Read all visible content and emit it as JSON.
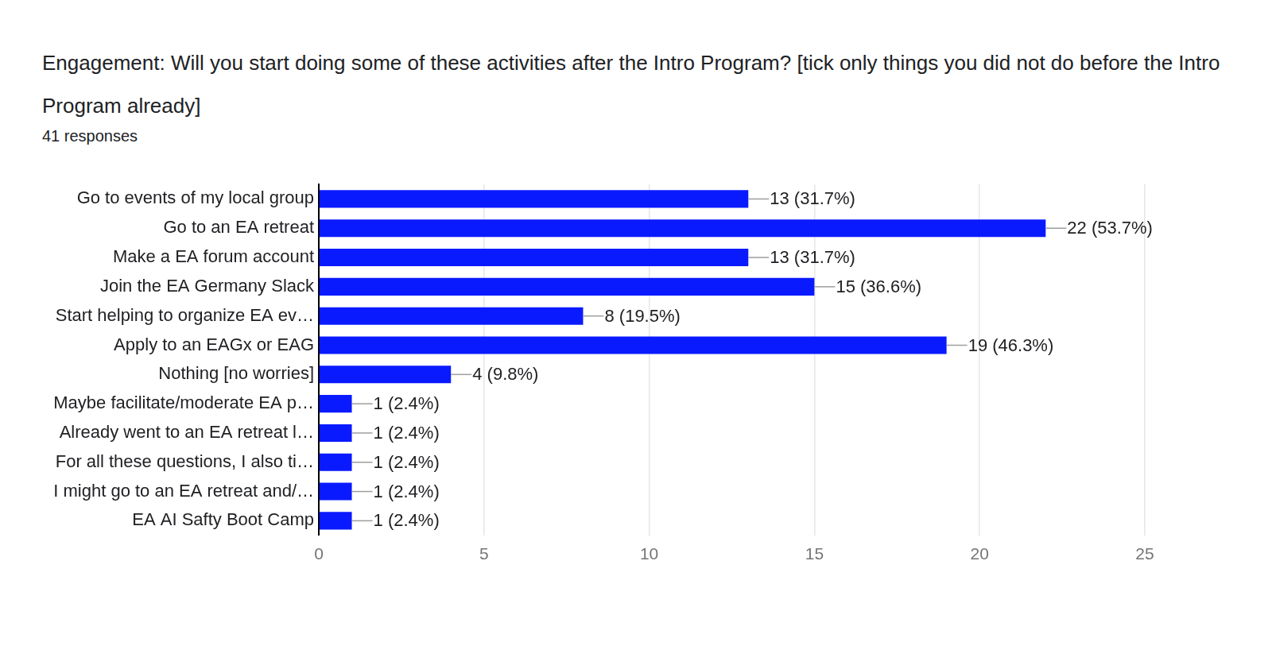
{
  "chart_data": {
    "type": "bar",
    "title": "Engagement: Will you start doing some of these activities after the Intro Program? [tick only things you did not do before the Intro Program already]",
    "subtitle": "41 responses",
    "orientation": "horizontal",
    "categories": [
      "Go to events of my local group",
      "Go to an EA retreat",
      "Make a EA forum account",
      "Join the EA Germany Slack",
      "Start helping to organize EA ev…",
      "Apply to an EAGx or EAG",
      "Nothing [no worries]",
      "Maybe facilitate/moderate EA p…",
      "Already went to an EA retreat l…",
      "For all these questions, I also ti…",
      "I might go to an EA retreat and/…",
      "EA AI Safty Boot Camp"
    ],
    "values": [
      13,
      22,
      13,
      15,
      8,
      19,
      4,
      1,
      1,
      1,
      1,
      1
    ],
    "value_labels": [
      "13 (31.7%)",
      "22 (53.7%)",
      "13 (31.7%)",
      "15 (36.6%)",
      "8 (19.5%)",
      "19 (46.3%)",
      "4 (9.8%)",
      "1 (2.4%)",
      "1 (2.4%)",
      "1 (2.4%)",
      "1 (2.4%)",
      "1 (2.4%)"
    ],
    "data_labels": true,
    "color": "#0a1aff",
    "xlim": [
      0,
      25
    ],
    "xticks": [
      0,
      5,
      10,
      15,
      20,
      25
    ],
    "grid": true
  }
}
